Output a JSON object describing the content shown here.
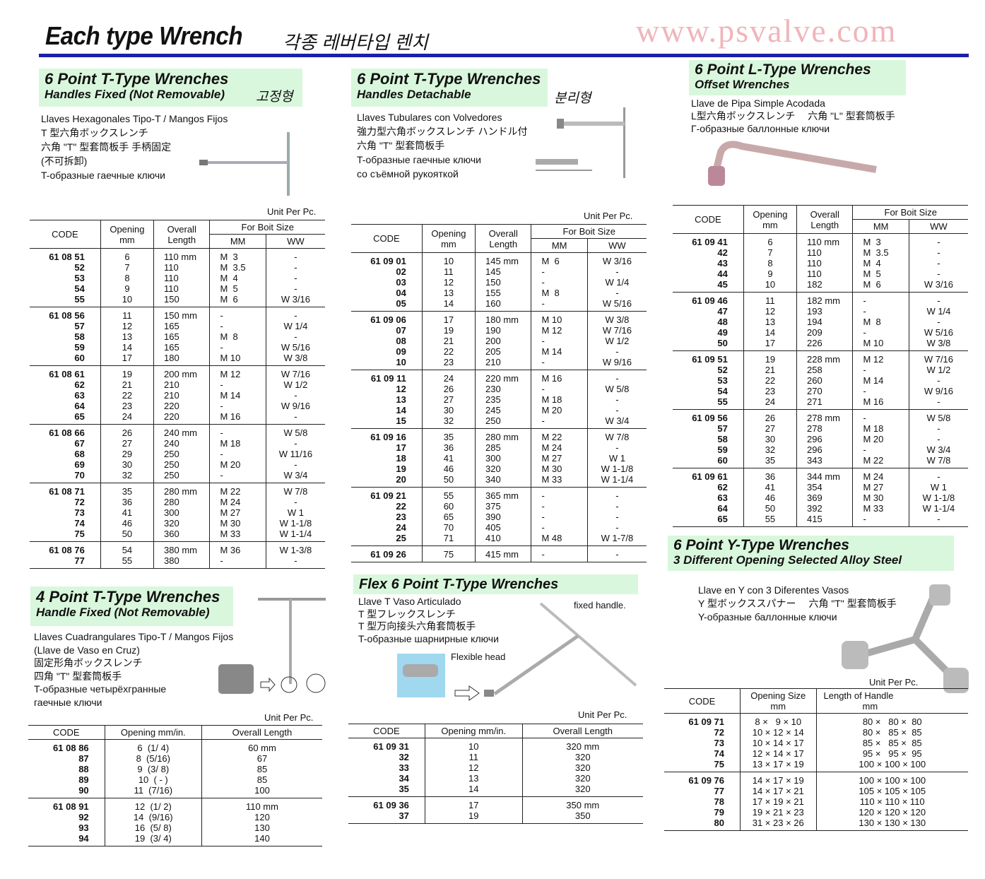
{
  "title": "Each type Wrench",
  "title_ko": "각종 레버타입 렌치",
  "watermark": "www.psvalve.com",
  "sections": [
    {
      "h1": "6 Point T-Type Wrenches",
      "h2": "Handles Fixed (Not Removable)",
      "ko": "고정형",
      "desc": [
        "Llaves Hexagonales Tipo-T / Mangos Fijos",
        "T 型六角ボックスレンチ",
        "六角 \"T\" 型套筒板手 手柄固定",
        "(不可拆卸)",
        "T-образные гаечные ключи"
      ],
      "unit": "Unit Per Pc.",
      "headers": {
        "code": "CODE",
        "opening": "Opening",
        "opening_unit": "mm",
        "length": "Overall",
        "length2": "Length",
        "bolt": "For Boit Size",
        "mm": "MM",
        "ww": "WW"
      },
      "groups": [
        [
          [
            "61 08 51",
            "6",
            "110 mm",
            "M  3",
            "-"
          ],
          [
            "52",
            "7",
            "110",
            "M  3.5",
            "-"
          ],
          [
            "53",
            "8",
            "110",
            "M  4",
            "-"
          ],
          [
            "54",
            "9",
            "110",
            "M  5",
            "-"
          ],
          [
            "55",
            "10",
            "150",
            "M  6",
            "W 3/16"
          ]
        ],
        [
          [
            "61 08 56",
            "11",
            "150 mm",
            "-",
            "-"
          ],
          [
            "57",
            "12",
            "165",
            "-",
            "W 1/4"
          ],
          [
            "58",
            "13",
            "165",
            "M  8",
            "-"
          ],
          [
            "59",
            "14",
            "165",
            "-",
            "W 5/16"
          ],
          [
            "60",
            "17",
            "180",
            "M 10",
            "W 3/8"
          ]
        ],
        [
          [
            "61 08 61",
            "19",
            "200 mm",
            "M 12",
            "W 7/16"
          ],
          [
            "62",
            "21",
            "210",
            "-",
            "W 1/2"
          ],
          [
            "63",
            "22",
            "210",
            "M 14",
            "-"
          ],
          [
            "64",
            "23",
            "220",
            "-",
            "W 9/16"
          ],
          [
            "65",
            "24",
            "220",
            "M 16",
            "-"
          ]
        ],
        [
          [
            "61 08 66",
            "26",
            "240 mm",
            "-",
            "W 5/8"
          ],
          [
            "67",
            "27",
            "240",
            "M 18",
            "-"
          ],
          [
            "68",
            "29",
            "250",
            "-",
            "W 11/16"
          ],
          [
            "69",
            "30",
            "250",
            "M 20",
            "-"
          ],
          [
            "70",
            "32",
            "250",
            "-",
            "W 3/4"
          ]
        ],
        [
          [
            "61 08 71",
            "35",
            "280 mm",
            "M 22",
            "W 7/8"
          ],
          [
            "72",
            "36",
            "280",
            "M 24",
            "-"
          ],
          [
            "73",
            "41",
            "300",
            "M 27",
            "W 1"
          ],
          [
            "74",
            "46",
            "320",
            "M 30",
            "W 1-1/8"
          ],
          [
            "75",
            "50",
            "360",
            "M 33",
            "W 1-1/4"
          ]
        ],
        [
          [
            "61 08 76",
            "54",
            "380 mm",
            "M 36",
            "W 1-3/8"
          ],
          [
            "77",
            "55",
            "380",
            "-",
            "-"
          ]
        ]
      ]
    },
    {
      "h1": "6 Point T-Type Wrenches",
      "h2": "Handles Detachable",
      "ko": "분리형",
      "desc": [
        "Llaves Tubulares con Volvedores",
        "強力型六角ボックスレンチ ハンドル付",
        "六角 \"T\" 型套筒板手",
        "T-образные гаечные ключи",
        "со съёмной рукояткой"
      ],
      "unit": "Unit Per Pc.",
      "headers": {
        "code": "CODE",
        "opening": "Opening",
        "opening_unit": "mm",
        "length": "Overall",
        "length2": "Length",
        "bolt": "For Boit Size",
        "mm": "MM",
        "ww": "WW"
      },
      "groups": [
        [
          [
            "61 09 01",
            "10",
            "145 mm",
            "M  6",
            "W 3/16"
          ],
          [
            "02",
            "11",
            "145",
            "-",
            "-"
          ],
          [
            "03",
            "12",
            "150",
            "-",
            "W 1/4"
          ],
          [
            "04",
            "13",
            "155",
            "M  8",
            "-"
          ],
          [
            "05",
            "14",
            "160",
            "-",
            "W 5/16"
          ]
        ],
        [
          [
            "61 09 06",
            "17",
            "180 mm",
            "M 10",
            "W 3/8"
          ],
          [
            "07",
            "19",
            "190",
            "M 12",
            "W 7/16"
          ],
          [
            "08",
            "21",
            "200",
            "-",
            "W 1/2"
          ],
          [
            "09",
            "22",
            "205",
            "M 14",
            "-"
          ],
          [
            "10",
            "23",
            "210",
            "-",
            "W 9/16"
          ]
        ],
        [
          [
            "61 09 11",
            "24",
            "220 mm",
            "M 16",
            "-"
          ],
          [
            "12",
            "26",
            "230",
            "-",
            "W 5/8"
          ],
          [
            "13",
            "27",
            "235",
            "M 18",
            "-"
          ],
          [
            "14",
            "30",
            "245",
            "M 20",
            "-"
          ],
          [
            "15",
            "32",
            "250",
            "-",
            "W 3/4"
          ]
        ],
        [
          [
            "61 09 16",
            "35",
            "280 mm",
            "M 22",
            "W 7/8"
          ],
          [
            "17",
            "36",
            "285",
            "M 24",
            "-"
          ],
          [
            "18",
            "41",
            "300",
            "M 27",
            "W 1"
          ],
          [
            "19",
            "46",
            "320",
            "M 30",
            "W 1-1/8"
          ],
          [
            "20",
            "50",
            "340",
            "M 33",
            "W 1-1/4"
          ]
        ],
        [
          [
            "61 09 21",
            "55",
            "365 mm",
            "-",
            "-"
          ],
          [
            "22",
            "60",
            "375",
            "-",
            "-"
          ],
          [
            "23",
            "65",
            "390",
            "-",
            "-"
          ],
          [
            "24",
            "70",
            "405",
            "-",
            "-"
          ],
          [
            "25",
            "71",
            "410",
            "M 48",
            "W 1-7/8"
          ]
        ],
        [
          [
            "61 09 26",
            "75",
            "415 mm",
            "-",
            "-"
          ]
        ]
      ]
    },
    {
      "h1": "6 Point L-Type Wrenches",
      "h2": "Offset Wrenches",
      "desc": [
        "Llave de Pipa Simple Acodada",
        "L型六角ボックスレンチ　 六角 \"L\" 型套筒板手",
        "Г-образные баллонные ключи"
      ],
      "headers": {
        "code": "CODE",
        "opening": "Opening",
        "opening_unit": "mm",
        "length": "Overall",
        "length2": "Length",
        "bolt": "For Boit Size",
        "mm": "MM",
        "ww": "WW"
      },
      "groups": [
        [
          [
            "61 09 41",
            "6",
            "110 mm",
            "M  3",
            "-"
          ],
          [
            "42",
            "7",
            "110",
            "M  3.5",
            "-"
          ],
          [
            "43",
            "8",
            "110",
            "M  4",
            "-"
          ],
          [
            "44",
            "9",
            "110",
            "M  5",
            "-"
          ],
          [
            "45",
            "10",
            "182",
            "M  6",
            "W 3/16"
          ]
        ],
        [
          [
            "61 09 46",
            "11",
            "182 mm",
            "-",
            "-"
          ],
          [
            "47",
            "12",
            "193",
            "-",
            "W 1/4"
          ],
          [
            "48",
            "13",
            "194",
            "M  8",
            "-"
          ],
          [
            "49",
            "14",
            "209",
            "-",
            "W 5/16"
          ],
          [
            "50",
            "17",
            "226",
            "M 10",
            "W 3/8"
          ]
        ],
        [
          [
            "61 09 51",
            "19",
            "228 mm",
            "M 12",
            "W 7/16"
          ],
          [
            "52",
            "21",
            "258",
            "-",
            "W 1/2"
          ],
          [
            "53",
            "22",
            "260",
            "M 14",
            "-"
          ],
          [
            "54",
            "23",
            "270",
            "-",
            "W 9/16"
          ],
          [
            "55",
            "24",
            "271",
            "M 16",
            "-"
          ]
        ],
        [
          [
            "61 09 56",
            "26",
            "278 mm",
            "-",
            "W 5/8"
          ],
          [
            "57",
            "27",
            "278",
            "M 18",
            "-"
          ],
          [
            "58",
            "30",
            "296",
            "M 20",
            "-"
          ],
          [
            "59",
            "32",
            "296",
            "-",
            "W 3/4"
          ],
          [
            "60",
            "35",
            "343",
            "M 22",
            "W 7/8"
          ]
        ],
        [
          [
            "61 09 61",
            "36",
            "344 mm",
            "M 24",
            "-"
          ],
          [
            "62",
            "41",
            "354",
            "M 27",
            "W 1"
          ],
          [
            "63",
            "46",
            "369",
            "M 30",
            "W 1-1/8"
          ],
          [
            "64",
            "50",
            "392",
            "M 33",
            "W 1-1/4"
          ],
          [
            "65",
            "55",
            "415",
            "-",
            "-"
          ]
        ]
      ]
    },
    {
      "h1": "4 Point T-Type Wrenches",
      "h2": "Handle Fixed (Not Removable)",
      "desc": [
        "Llaves Cuadrangulares Tipo-T / Mangos Fijos",
        "(Llave de Vaso en Cruz)",
        "固定形角ボックスレンチ",
        "四角 \"T\" 型套筒板手",
        "T-образные четырёхгранные",
        "гаечные ключи"
      ],
      "unit": "Unit Per Pc.",
      "headers": {
        "code": "CODE",
        "opening": "Opening mm/in.",
        "length": "Overall Length"
      },
      "groups": [
        [
          [
            "61 08 86",
            "6  (1/ 4)",
            "60 mm"
          ],
          [
            "87",
            "8  (5/16)",
            "67"
          ],
          [
            "88",
            "9  (3/ 8)",
            "85"
          ],
          [
            "89",
            "10  ( - )",
            "85"
          ],
          [
            "90",
            "11  (7/16)",
            "100"
          ]
        ],
        [
          [
            "61 08 91",
            "12  (1/ 2)",
            "110 mm"
          ],
          [
            "92",
            "14  (9/16)",
            "120"
          ],
          [
            "93",
            "16  (5/ 8)",
            "130"
          ],
          [
            "94",
            "19  (3/ 4)",
            "140"
          ]
        ]
      ]
    },
    {
      "h1": "Flex 6 Point T-Type Wrenches",
      "desc": [
        "Llave T Vaso Articulado",
        "T 型フレックスレンチ",
        "T 型万向接头六角套筒板手",
        "T-образные шарнирные ключи"
      ],
      "label_fixed": "fixed handle.",
      "label_flex": "Flexible head",
      "unit": "Unit Per Pc.",
      "headers": {
        "code": "CODE",
        "opening": "Opening mm/in.",
        "length": "Overall Length"
      },
      "groups": [
        [
          [
            "61 09 31",
            "10",
            "320 mm"
          ],
          [
            "32",
            "11",
            "320"
          ],
          [
            "33",
            "12",
            "320"
          ],
          [
            "34",
            "13",
            "320"
          ],
          [
            "35",
            "14",
            "320"
          ]
        ],
        [
          [
            "61 09 36",
            "17",
            "350 mm"
          ],
          [
            "37",
            "19",
            "350"
          ]
        ]
      ]
    },
    {
      "h1": "6 Point Y-Type Wrenches",
      "h2": "3 Different Opening Selected Alloy Steel",
      "desc": [
        "Llave en Y con 3 Diferentes Vasos",
        "Y 型ボックススパナー　 六角 \"T\" 型套筒板手",
        "Y-образные баллонные ключи"
      ],
      "unit": "Unit Per Pc.",
      "headers": {
        "code": "CODE",
        "opening": "Opening Size",
        "opening_unit": "mm",
        "length": "Length of Handle",
        "length_unit": "mm"
      },
      "groups": [
        [
          [
            "61 09 71",
            "8 ×   9 × 10",
            "80 ×   80 ×  80"
          ],
          [
            "72",
            "10 × 12 × 14",
            "80 ×   85 ×  85"
          ],
          [
            "73",
            "10 × 14 × 17",
            "85 ×   85 ×  85"
          ],
          [
            "74",
            "12 × 14 × 17",
            "95 ×   95 ×  95"
          ],
          [
            "75",
            "13 × 17 × 19",
            "100 × 100 × 100"
          ]
        ],
        [
          [
            "61 09 76",
            "14 × 17 × 19",
            "100 × 100 × 100"
          ],
          [
            "77",
            "14 × 17 × 21",
            "105 × 105 × 105"
          ],
          [
            "78",
            "17 × 19 × 21",
            "110 × 110 × 110"
          ],
          [
            "79",
            "19 × 21 × 23",
            "120 × 120 × 120"
          ],
          [
            "80",
            "31 × 23 × 26",
            "130 × 130 × 130"
          ]
        ]
      ]
    }
  ],
  "colors": {
    "rule": "#1c1fa8",
    "header_bg": "#d9f7dc",
    "watermark": "#e17882"
  }
}
